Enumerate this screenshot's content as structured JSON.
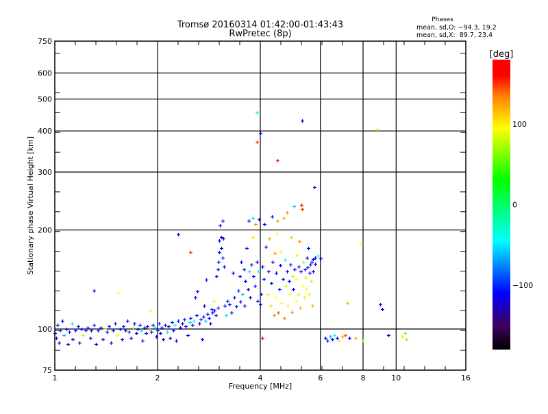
{
  "chart_data": {
    "type": "scatter",
    "title": "Tromsø 20160314 01:42:00-01:43:43",
    "subtitle": "RwPretec (8p)",
    "xlabel": "Frequency [MHz]",
    "ylabel": "Stationary phase Virtual Height [km]",
    "xscale": "log",
    "yscale": "log",
    "xlim": [
      1,
      16
    ],
    "ylim": [
      75,
      750
    ],
    "xticks": [
      1,
      2,
      4,
      6,
      8,
      10,
      16
    ],
    "xtick_labels": [
      "1",
      "2",
      "4",
      "6",
      "8",
      "10",
      "16"
    ],
    "yticks": [
      75,
      100,
      200,
      300,
      400,
      500,
      600,
      750
    ],
    "ytick_labels": [
      "75",
      "100",
      "200",
      "300",
      "400",
      "500",
      "600",
      "750"
    ],
    "grid": true,
    "stats": {
      "title": "Phases",
      "line_o": "mean, sd,O: −94.3, 19.2",
      "line_x": "mean, sd,X:  89.7, 23.4"
    },
    "colorbar": {
      "label": "[deg]",
      "range": [
        -180,
        180
      ],
      "ticks": [
        100,
        0,
        -100
      ],
      "tick_labels": [
        "100",
        "0",
        "−100"
      ],
      "colormap": [
        {
          "v": -180,
          "c": "#000000"
        },
        {
          "v": -150,
          "c": "#400060"
        },
        {
          "v": -110,
          "c": "#0000ff"
        },
        {
          "v": -45,
          "c": "#00ffff"
        },
        {
          "v": 30,
          "c": "#00ff00"
        },
        {
          "v": 95,
          "c": "#ffff00"
        },
        {
          "v": 135,
          "c": "#ff8000"
        },
        {
          "v": 160,
          "c": "#ff0000"
        },
        {
          "v": 180,
          "c": "#ff0000"
        }
      ]
    },
    "point_fields": [
      "frequency_MHz",
      "height_km",
      "phase_deg"
    ],
    "points": [
      [
        1.0,
        97,
        -110
      ],
      [
        1.01,
        94,
        -120
      ],
      [
        1.02,
        103,
        -105
      ],
      [
        1.03,
        91,
        -115
      ],
      [
        1.04,
        99,
        -100
      ],
      [
        1.05,
        106,
        -110
      ],
      [
        1.06,
        96,
        -60
      ],
      [
        1.08,
        100,
        -110
      ],
      [
        1.09,
        90,
        -125
      ],
      [
        1.1,
        98,
        -105
      ],
      [
        1.12,
        104,
        -50
      ],
      [
        1.13,
        93,
        -115
      ],
      [
        1.15,
        99,
        -110
      ],
      [
        1.17,
        102,
        -100
      ],
      [
        1.18,
        91,
        -120
      ],
      [
        1.2,
        100,
        -110
      ],
      [
        1.21,
        96,
        75
      ],
      [
        1.23,
        99,
        -120
      ],
      [
        1.25,
        101,
        -105
      ],
      [
        1.27,
        94,
        -125
      ],
      [
        1.28,
        99,
        -110
      ],
      [
        1.3,
        103,
        -100
      ],
      [
        1.3,
        131,
        -110
      ],
      [
        1.32,
        90,
        -125
      ],
      [
        1.34,
        99,
        -105
      ],
      [
        1.36,
        101,
        -110
      ],
      [
        1.38,
        93,
        -115
      ],
      [
        1.4,
        100,
        95
      ],
      [
        1.42,
        98,
        -110
      ],
      [
        1.44,
        102,
        -105
      ],
      [
        1.46,
        91,
        -120
      ],
      [
        1.48,
        99,
        -110
      ],
      [
        1.5,
        104,
        -100
      ],
      [
        1.52,
        96,
        95
      ],
      [
        1.53,
        129,
        95
      ],
      [
        1.55,
        100,
        -110
      ],
      [
        1.57,
        93,
        -125
      ],
      [
        1.59,
        102,
        -105
      ],
      [
        1.61,
        99,
        -110
      ],
      [
        1.63,
        106,
        -110
      ],
      [
        1.65,
        98,
        -100
      ],
      [
        1.67,
        94,
        -110
      ],
      [
        1.69,
        101,
        80
      ],
      [
        1.71,
        104,
        -105
      ],
      [
        1.73,
        97,
        -125
      ],
      [
        1.75,
        100,
        -110
      ],
      [
        1.77,
        103,
        -105
      ],
      [
        1.79,
        99,
        -50
      ],
      [
        1.81,
        92,
        -110
      ],
      [
        1.83,
        101,
        -110
      ],
      [
        1.85,
        97,
        -120
      ],
      [
        1.87,
        102,
        -105
      ],
      [
        1.89,
        100,
        130
      ],
      [
        1.9,
        114,
        95
      ],
      [
        1.92,
        98,
        -110
      ],
      [
        1.94,
        103,
        -105
      ],
      [
        1.96,
        101,
        -60
      ],
      [
        1.98,
        95,
        -115
      ],
      [
        2.0,
        99,
        -110
      ],
      [
        2.02,
        104,
        -100
      ],
      [
        2.04,
        97,
        -110
      ],
      [
        2.06,
        101,
        -120
      ],
      [
        2.08,
        93,
        -110
      ],
      [
        2.1,
        103,
        -105
      ],
      [
        2.13,
        98,
        -50
      ],
      [
        2.15,
        102,
        -110
      ],
      [
        2.17,
        94,
        -115
      ],
      [
        2.2,
        105,
        -100
      ],
      [
        2.22,
        99,
        -110
      ],
      [
        2.25,
        103,
        -45
      ],
      [
        2.27,
        92,
        -110
      ],
      [
        2.3,
        106,
        -105
      ],
      [
        2.3,
        194,
        -110
      ],
      [
        2.33,
        101,
        -110
      ],
      [
        2.36,
        104,
        -120
      ],
      [
        2.39,
        107,
        -100
      ],
      [
        2.42,
        102,
        -110
      ],
      [
        2.45,
        96,
        -110
      ],
      [
        2.48,
        105,
        -50
      ],
      [
        2.5,
        108,
        -105
      ],
      [
        2.5,
        171,
        150
      ],
      [
        2.53,
        103,
        -110
      ],
      [
        2.56,
        106,
        -45
      ],
      [
        2.58,
        125,
        -110
      ],
      [
        2.6,
        110,
        -110
      ],
      [
        2.62,
        130,
        -105
      ],
      [
        2.65,
        104,
        -120
      ],
      [
        2.68,
        107,
        -100
      ],
      [
        2.7,
        93,
        -110
      ],
      [
        2.72,
        109,
        -110
      ],
      [
        2.74,
        118,
        -110
      ],
      [
        2.76,
        106,
        -60
      ],
      [
        2.78,
        141,
        -105
      ],
      [
        2.8,
        111,
        -110
      ],
      [
        2.83,
        108,
        -105
      ],
      [
        2.86,
        104,
        -110
      ],
      [
        2.88,
        115,
        -100
      ],
      [
        2.9,
        112,
        -120
      ],
      [
        2.92,
        122,
        100
      ],
      [
        2.94,
        114,
        -110
      ],
      [
        2.96,
        110,
        -105
      ],
      [
        2.98,
        145,
        -110
      ],
      [
        3.0,
        116,
        -100
      ],
      [
        3.0,
        152,
        -110
      ],
      [
        3.02,
        160,
        -110
      ],
      [
        3.03,
        171,
        -105
      ],
      [
        3.03,
        186,
        -110
      ],
      [
        3.05,
        206,
        -110
      ],
      [
        3.07,
        190,
        -125
      ],
      [
        3.08,
        176,
        -110
      ],
      [
        3.1,
        165,
        -105
      ],
      [
        3.1,
        213,
        -110
      ],
      [
        3.12,
        188,
        -110
      ],
      [
        3.13,
        155,
        -110
      ],
      [
        3.15,
        118,
        -110
      ],
      [
        3.18,
        110,
        -50
      ],
      [
        3.2,
        122,
        -105
      ],
      [
        3.25,
        119,
        -110
      ],
      [
        3.3,
        112,
        -120
      ],
      [
        3.32,
        148,
        -110
      ],
      [
        3.35,
        125,
        -105
      ],
      [
        3.4,
        117,
        -110
      ],
      [
        3.45,
        131,
        -100
      ],
      [
        3.48,
        145,
        -110
      ],
      [
        3.5,
        121,
        -110
      ],
      [
        3.52,
        160,
        -110
      ],
      [
        3.55,
        128,
        -60
      ],
      [
        3.58,
        152,
        -105
      ],
      [
        3.6,
        118,
        -110
      ],
      [
        3.62,
        140,
        -110
      ],
      [
        3.65,
        176,
        -105
      ],
      [
        3.68,
        132,
        -120
      ],
      [
        3.7,
        213,
        -110
      ],
      [
        3.72,
        150,
        -50
      ],
      [
        3.74,
        125,
        -110
      ],
      [
        3.76,
        157,
        -105
      ],
      [
        3.8,
        218,
        -50
      ],
      [
        3.8,
        190,
        100
      ],
      [
        3.82,
        145,
        -110
      ],
      [
        3.85,
        135,
        -110
      ],
      [
        3.87,
        208,
        130
      ],
      [
        3.9,
        160,
        -110
      ],
      [
        3.9,
        455,
        -50
      ],
      [
        3.9,
        370,
        150
      ],
      [
        3.92,
        122,
        -110
      ],
      [
        3.95,
        150,
        -45
      ],
      [
        3.97,
        215,
        -110
      ],
      [
        4.0,
        395,
        -110
      ],
      [
        4.0,
        119,
        -110
      ],
      [
        4.02,
        128,
        -100
      ],
      [
        4.05,
        155,
        -110
      ],
      [
        4.05,
        94,
        160
      ],
      [
        4.1,
        142,
        -110
      ],
      [
        4.12,
        208,
        -110
      ],
      [
        4.15,
        178,
        -105
      ],
      [
        4.2,
        128,
        100
      ],
      [
        4.22,
        150,
        -110
      ],
      [
        4.25,
        188,
        120
      ],
      [
        4.28,
        118,
        110
      ],
      [
        4.3,
        138,
        -105
      ],
      [
        4.32,
        220,
        -110
      ],
      [
        4.35,
        160,
        -120
      ],
      [
        4.38,
        110,
        130
      ],
      [
        4.4,
        170,
        130
      ],
      [
        4.42,
        125,
        95
      ],
      [
        4.45,
        148,
        -110
      ],
      [
        4.47,
        195,
        95
      ],
      [
        4.5,
        325,
        160
      ],
      [
        4.5,
        213,
        130
      ],
      [
        4.52,
        112,
        140
      ],
      [
        4.55,
        132,
        -105
      ],
      [
        4.58,
        156,
        -110
      ],
      [
        4.6,
        172,
        100
      ],
      [
        4.62,
        120,
        95
      ],
      [
        4.65,
        142,
        -110
      ],
      [
        4.68,
        218,
        120
      ],
      [
        4.7,
        108,
        130
      ],
      [
        4.72,
        162,
        -45
      ],
      [
        4.75,
        135,
        80
      ],
      [
        4.78,
        150,
        -110
      ],
      [
        4.8,
        226,
        130
      ],
      [
        4.82,
        118,
        100
      ],
      [
        4.85,
        140,
        -110
      ],
      [
        4.88,
        128,
        95
      ],
      [
        4.9,
        157,
        -105
      ],
      [
        4.92,
        190,
        110
      ],
      [
        4.95,
        113,
        130
      ],
      [
        4.98,
        145,
        80
      ],
      [
        5.0,
        132,
        -110
      ],
      [
        5.02,
        236,
        -60
      ],
      [
        5.05,
        152,
        -110
      ],
      [
        5.08,
        122,
        95
      ],
      [
        5.1,
        168,
        90
      ],
      [
        5.12,
        142,
        95
      ],
      [
        5.15,
        128,
        100
      ],
      [
        5.18,
        155,
        -110
      ],
      [
        5.2,
        185,
        130
      ],
      [
        5.22,
        116,
        120
      ],
      [
        5.25,
        150,
        -120
      ],
      [
        5.28,
        238,
        160
      ],
      [
        5.3,
        232,
        150
      ],
      [
        5.3,
        430,
        -125
      ],
      [
        5.32,
        135,
        95
      ],
      [
        5.35,
        160,
        70
      ],
      [
        5.38,
        125,
        100
      ],
      [
        5.4,
        152,
        -110
      ],
      [
        5.42,
        143,
        75
      ],
      [
        5.45,
        133,
        95
      ],
      [
        5.48,
        165,
        -110
      ],
      [
        5.5,
        154,
        -105
      ],
      [
        5.52,
        176,
        -110
      ],
      [
        5.55,
        128,
        90
      ],
      [
        5.58,
        148,
        -110
      ],
      [
        5.6,
        157,
        -105
      ],
      [
        5.62,
        140,
        80
      ],
      [
        5.65,
        160,
        -110
      ],
      [
        5.68,
        118,
        120
      ],
      [
        5.7,
        150,
        -110
      ],
      [
        5.72,
        163,
        -110
      ],
      [
        5.75,
        270,
        -105
      ],
      [
        5.78,
        158,
        -105
      ],
      [
        5.8,
        165,
        -110
      ],
      [
        5.9,
        167,
        -45
      ],
      [
        6.0,
        164,
        -110
      ],
      [
        6.2,
        94,
        -110
      ],
      [
        6.3,
        92,
        -105
      ],
      [
        6.4,
        95,
        -60
      ],
      [
        6.5,
        93,
        -110
      ],
      [
        6.6,
        96,
        -45
      ],
      [
        6.7,
        94,
        -110
      ],
      [
        6.8,
        92,
        100
      ],
      [
        6.95,
        95,
        130
      ],
      [
        7.1,
        96,
        140
      ],
      [
        7.2,
        120,
        60
      ],
      [
        7.3,
        94,
        -110
      ],
      [
        7.6,
        94,
        120
      ],
      [
        7.9,
        183,
        95
      ],
      [
        8.0,
        92,
        70
      ],
      [
        8.8,
        403,
        80
      ],
      [
        9.0,
        119,
        -105
      ],
      [
        9.1,
        115,
        -110
      ],
      [
        9.5,
        96,
        -110
      ],
      [
        10.4,
        95,
        80
      ],
      [
        10.6,
        97,
        60
      ],
      [
        10.7,
        93,
        70
      ]
    ]
  }
}
